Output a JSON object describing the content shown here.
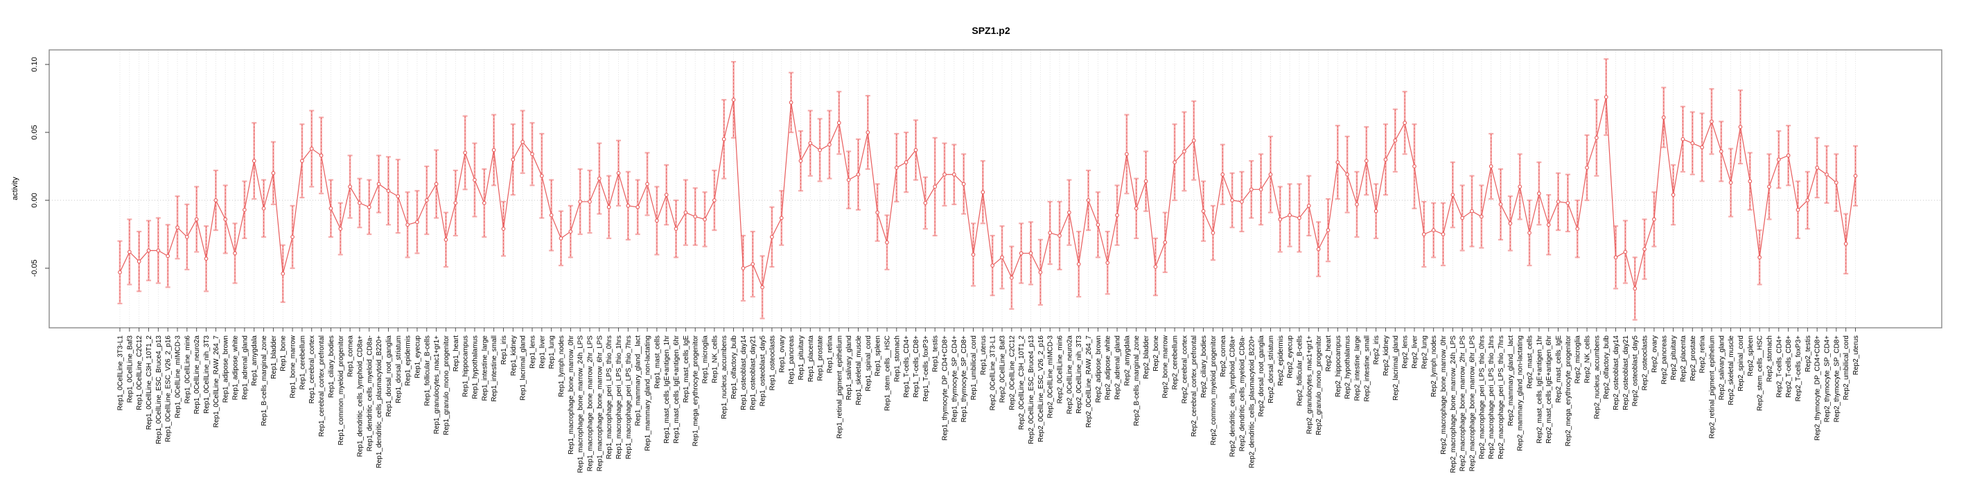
{
  "chart": {
    "title": "SPZ1.p2",
    "ylabel": "activity"
  },
  "chart_data": {
    "type": "line",
    "title": "SPZ1.p2",
    "xlabel": "",
    "ylabel": "activity",
    "ylim": [
      -0.094,
      0.111
    ],
    "yticks": [
      -0.05,
      0.0,
      0.05,
      0.1
    ],
    "ytick_labels": [
      "-0.05",
      "0.00",
      "0.05",
      "0.10"
    ],
    "grid": "vertical dotted gridline per category; horizontal dotted line at 0 only",
    "legend_position": "none",
    "marker": "open-circle",
    "error_bars": true,
    "colors": {
      "line": "#e85b5b",
      "marker": "#e85b5b",
      "whisker": "#f5abab",
      "grid": "#d9d9d9",
      "zero_line": "#c4c4c4",
      "box": "#8a8a8a",
      "tick": "#404040",
      "text": "#000000"
    },
    "replicate_prefixes": [
      "Rep1_",
      "Rep2_"
    ],
    "base_categories": [
      "0CellLine_3T3-L1",
      "0CellLine_Baf3",
      "0CellLine_C2C12",
      "0CellLine_C3H_10T1_2",
      "0CellLine_ESC_Bruce4_p13",
      "0CellLine_ESC_V26_2_p16",
      "0CellLine_mIMCD-3",
      "0CellLine_min6",
      "0CellLine_neuro2a",
      "0CellLine_nih_3T3",
      "0CellLine_RAW_264_7",
      "adipose_brown",
      "adipose_white",
      "adrenal_gland",
      "amygdala",
      "B-cells_marginal_zone",
      "bladder",
      "bone",
      "bone_marrow",
      "cerebellum",
      "cerebral_cortex",
      "cerebral_cortex_prefrontal",
      "ciliary_bodies",
      "common_myeloid_progenitor",
      "cornea",
      "dendritic_cells_lymphoid_CD8a+",
      "dendritic_cells_myeloid_CD8a-",
      "dendritic_cells_plasmacytoid_B220+",
      "dorsal_root_ganglia",
      "dorsal_striatum",
      "epidermis",
      "eyecup",
      "follicular_B-cells",
      "granulocytes_mac1+gr1+",
      "granulo_mono_progenitor",
      "heart",
      "hippocampus",
      "hypothalamus",
      "intestine_large",
      "intestine_small",
      "iris",
      "kidney",
      "lacrimal_gland",
      "lens",
      "liver",
      "lung",
      "lymph_nodes",
      "macrophage_bone_marrow_0hr",
      "macrophage_bone_marrow_24h_LPS",
      "macrophage_bone_marrow_2hr_LPS",
      "macrophage_bone_marrow_6hr_LPS",
      "macrophage_peri_LPS_thio_0hrs",
      "macrophage_peri_LPS_thio_1hrs",
      "macrophage_peri_LPS_thio_7hrs",
      "mammary_gland__lact",
      "mammary_gland_non-lactating",
      "mast_cells",
      "mast_cells_IgE+antigen_1hr",
      "mast_cells_IgE+antigen_6hr",
      "mast_cells_IgE",
      "mega_erythrocyte_progenitor",
      "microglia",
      "NK_cells",
      "nucleus_accumbens",
      "olfactory_bulb",
      "osteoblast_day14",
      "osteoblast_day21",
      "osteoblast_day5",
      "osteoclasts",
      "ovary",
      "pancreas",
      "pituitary",
      "placenta",
      "prostate",
      "retina",
      "retinal_pigment_epithelium",
      "salivary_gland",
      "skeletal_muscle",
      "spinal_cord",
      "spleen",
      "stem_cells__HSC",
      "stomach",
      "T-cells_CD4+",
      "T-cells_CD8+",
      "T-cells_foxP3+",
      "testis",
      "thymocyte_DP_CD4+CD8+",
      "thymocyte_SP_CD4+",
      "thymocyte_SP_CD8+",
      "umbilical_cord",
      "uterus"
    ],
    "series": [
      {
        "name": "Rep1",
        "values": [
          -0.053,
          -0.038,
          -0.045,
          -0.037,
          -0.037,
          -0.041,
          -0.02,
          -0.027,
          -0.014,
          -0.043,
          0.0,
          -0.014,
          -0.039,
          -0.007,
          0.029,
          -0.006,
          0.02,
          -0.054,
          -0.027,
          0.029,
          0.038,
          0.033,
          -0.006,
          -0.021,
          0.01,
          -0.002,
          -0.005,
          0.012,
          0.007,
          0.003,
          -0.018,
          -0.016,
          0.0,
          0.012,
          -0.029,
          -0.002,
          0.035,
          0.015,
          -0.002,
          0.037,
          -0.021,
          0.03,
          0.043,
          0.034,
          0.018,
          -0.011,
          -0.028,
          -0.023,
          -0.001,
          -0.001,
          0.016,
          -0.005,
          0.02,
          -0.004,
          -0.005,
          0.012,
          -0.015,
          0.004,
          -0.021,
          -0.009,
          -0.012,
          -0.014,
          0.0,
          0.045,
          0.074,
          -0.05,
          -0.047,
          -0.064,
          -0.027,
          -0.013,
          0.072,
          0.029,
          0.042,
          0.037,
          0.041,
          0.057,
          0.015,
          0.019,
          0.05,
          -0.009,
          -0.031,
          0.024,
          0.028,
          0.037,
          -0.002,
          0.01,
          0.019,
          0.019,
          0.012,
          -0.04,
          0.006
        ],
        "errors": [
          0.023,
          0.024,
          0.022,
          0.022,
          0.024,
          0.023,
          0.023,
          0.024,
          0.024,
          0.024,
          0.022,
          0.025,
          0.022,
          0.021,
          0.028,
          0.021,
          0.023,
          0.021,
          0.023,
          0.027,
          0.028,
          0.028,
          0.021,
          0.019,
          0.023,
          0.018,
          0.02,
          0.021,
          0.025,
          0.027,
          0.024,
          0.023,
          0.025,
          0.025,
          0.02,
          0.024,
          0.027,
          0.027,
          0.025,
          0.026,
          0.02,
          0.026,
          0.023,
          0.023,
          0.031,
          0.026,
          0.02,
          0.019,
          0.024,
          0.023,
          0.026,
          0.023,
          0.024,
          0.025,
          0.02,
          0.023,
          0.025,
          0.022,
          0.021,
          0.024,
          0.021,
          0.02,
          0.022,
          0.029,
          0.028,
          0.024,
          0.024,
          0.023,
          0.022,
          0.02,
          0.022,
          0.022,
          0.024,
          0.023,
          0.025,
          0.023,
          0.021,
          0.026,
          0.027,
          0.021,
          0.02,
          0.025,
          0.022,
          0.022,
          0.019,
          0.036,
          0.023,
          0.022,
          0.022,
          0.023,
          0.023
        ]
      },
      {
        "name": "Rep2",
        "values": [
          -0.048,
          -0.042,
          -0.057,
          -0.039,
          -0.039,
          -0.053,
          -0.024,
          -0.026,
          -0.009,
          -0.047,
          0.0,
          -0.018,
          -0.046,
          -0.011,
          0.034,
          -0.006,
          0.014,
          -0.049,
          -0.031,
          0.028,
          0.036,
          0.044,
          -0.008,
          -0.024,
          0.019,
          0.0,
          -0.001,
          0.008,
          0.008,
          0.019,
          -0.014,
          -0.011,
          -0.013,
          -0.004,
          -0.036,
          -0.022,
          0.028,
          0.019,
          -0.003,
          0.029,
          -0.008,
          0.03,
          0.044,
          0.057,
          0.025,
          -0.025,
          -0.022,
          -0.025,
          0.004,
          -0.013,
          -0.008,
          -0.012,
          0.025,
          -0.003,
          -0.017,
          0.01,
          -0.024,
          0.005,
          -0.018,
          -0.001,
          -0.002,
          -0.021,
          0.024,
          0.046,
          0.076,
          -0.042,
          -0.038,
          -0.065,
          -0.036,
          -0.014,
          0.061,
          0.004,
          0.045,
          0.042,
          0.039,
          0.058,
          0.036,
          0.013,
          0.054,
          0.014,
          -0.042,
          0.01,
          0.03,
          0.033,
          -0.007,
          0.0,
          0.024,
          0.019,
          0.013,
          -0.032,
          0.018
        ],
        "errors": [
          0.022,
          0.023,
          0.023,
          0.022,
          0.023,
          0.024,
          0.023,
          0.025,
          0.024,
          0.024,
          0.022,
          0.024,
          0.023,
          0.022,
          0.029,
          0.022,
          0.022,
          0.021,
          0.022,
          0.028,
          0.029,
          0.029,
          0.022,
          0.02,
          0.022,
          0.02,
          0.022,
          0.021,
          0.026,
          0.028,
          0.024,
          0.023,
          0.025,
          0.022,
          0.02,
          0.023,
          0.027,
          0.028,
          0.024,
          0.025,
          0.02,
          0.026,
          0.023,
          0.023,
          0.031,
          0.024,
          0.02,
          0.023,
          0.024,
          0.024,
          0.026,
          0.023,
          0.024,
          0.026,
          0.02,
          0.024,
          0.024,
          0.023,
          0.022,
          0.021,
          0.021,
          0.021,
          0.024,
          0.028,
          0.028,
          0.023,
          0.023,
          0.023,
          0.022,
          0.02,
          0.022,
          0.022,
          0.024,
          0.023,
          0.025,
          0.024,
          0.022,
          0.025,
          0.027,
          0.021,
          0.02,
          0.024,
          0.021,
          0.022,
          0.021,
          0.021,
          0.022,
          0.021,
          0.021,
          0.022,
          0.022
        ]
      }
    ]
  }
}
